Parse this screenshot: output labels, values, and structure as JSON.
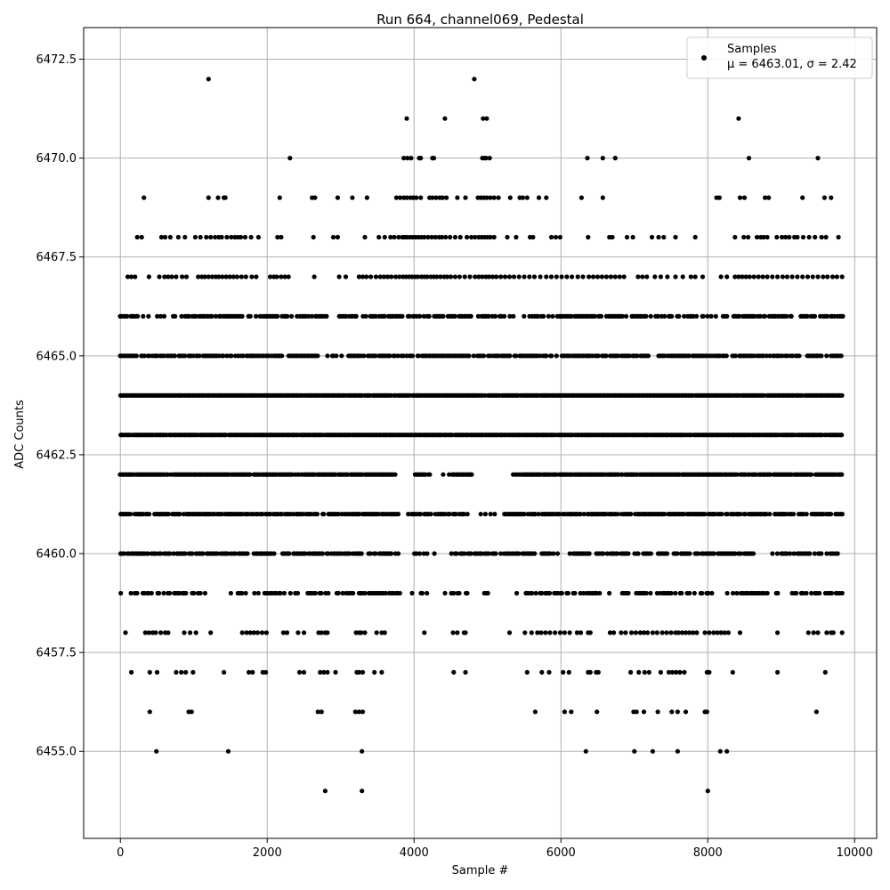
{
  "chart_data": {
    "type": "scatter",
    "title": "Run 664, channel069, Pedestal",
    "xlabel": "Sample #",
    "ylabel": "ADC Counts",
    "xlim": [
      -500,
      10300
    ],
    "ylim": [
      6452.8,
      6473.3
    ],
    "xticks": [
      0,
      2000,
      4000,
      6000,
      8000,
      10000
    ],
    "xtick_labels": [
      "0",
      "2000",
      "4000",
      "6000",
      "8000",
      "10000"
    ],
    "yticks": [
      6455.0,
      6457.5,
      6460.0,
      6462.5,
      6465.0,
      6467.5,
      6470.0,
      6472.5
    ],
    "ytick_labels": [
      "6455.0",
      "6457.5",
      "6460.0",
      "6462.5",
      "6465.0",
      "6467.5",
      "6470.0",
      "6472.5"
    ],
    "grid": true,
    "legend_position": "top-right",
    "marker_color": "#000000",
    "series": [
      {
        "name": "Samples",
        "legend_line2": "μ = 6463.01, σ = 2.42",
        "levels": [
          {
            "y": 6472,
            "x": [
              1200,
              4820
            ]
          },
          {
            "y": 6471,
            "x": [
              3900,
              4420,
              4940,
              4990,
              8420
            ]
          },
          {
            "y": 6470,
            "x": [
              2310,
              3860,
              3910,
              3960,
              4070,
              4090,
              4250,
              4270,
              4930,
              4960,
              4980,
              5030,
              6360,
              6570,
              6740,
              8560,
              9500
            ]
          },
          {
            "y": 6469,
            "x": [
              320,
              1200,
              1330,
              1410,
              1430,
              2170,
              2610,
              2650,
              2960,
              3160,
              3360,
              3760,
              3810,
              3860,
              3900,
              3950,
              3990,
              4030,
              4090,
              4210,
              4250,
              4300,
              4350,
              4390,
              4440,
              4590,
              4700,
              4870,
              4910,
              4950,
              4990,
              5040,
              5090,
              5150,
              5310,
              5440,
              5480,
              5540,
              5700,
              5800,
              6280,
              6570,
              8120,
              8160,
              8440,
              8500,
              8780,
              8830,
              9290,
              9590,
              9680
            ]
          },
          {
            "y": 6468,
            "x": [
              230,
              290,
              560,
              610,
              680,
              790,
              880,
              1020,
              1090,
              1170,
              1230,
              1290,
              1340,
              1380,
              1450,
              1510,
              1560,
              1600,
              1640,
              1700,
              1780,
              1880,
              2140,
              2190,
              2630,
              2900,
              2960,
              3330,
              3520,
              3600,
              3680,
              3730,
              3790,
              3840,
              3870,
              3900,
              3940,
              3980,
              4020,
              4060,
              4100,
              4140,
              4190,
              4240,
              4290,
              4340,
              4380,
              4430,
              4490,
              4560,
              4630,
              4720,
              4780,
              4830,
              4880,
              4920,
              4960,
              5000,
              5040,
              5090,
              5270,
              5390,
              5580,
              5620,
              5870,
              5930,
              5990,
              6370,
              6660,
              6700,
              6900,
              6980,
              7240,
              7330,
              7400,
              7560,
              7830,
              8370,
              8490,
              8550,
              8670,
              8720,
              8760,
              8810,
              8940,
              9010,
              9060,
              9110,
              9180,
              9220,
              9300,
              9380,
              9460,
              9550,
              9610,
              9780
            ]
          },
          {
            "y": 6467,
            "x": [
              100,
              150,
              200,
              390,
              530,
              600,
              650,
              700,
              760,
              840,
              900,
              1060,
              1110,
              1150,
              1200,
              1250,
              1300,
              1340,
              1390,
              1440,
              1490,
              1540,
              1590,
              1650,
              1710,
              1790,
              1850,
              2040,
              2090,
              2130,
              2190,
              2240,
              2290,
              2640,
              2980,
              3070,
              3250,
              3300,
              3350,
              3410,
              3480,
              3540,
              3590,
              3640,
              3690,
              3750,
              3800,
              3850,
              3890,
              3930,
              3970,
              4010,
              4050,
              4100,
              4140,
              4180,
              4230,
              4270,
              4310,
              4360,
              4410,
              4450,
              4500,
              4560,
              4620,
              4690,
              4760,
              4830,
              4880,
              4930,
              4980,
              5020,
              5070,
              5120,
              5180,
              5240,
              5300,
              5360,
              5430,
              5500,
              5570,
              5640,
              5720,
              5800,
              5870,
              5940,
              6010,
              6080,
              6150,
              6230,
              6300,
              6380,
              6440,
              6500,
              6560,
              6620,
              6680,
              6740,
              6800,
              6860,
              7050,
              7110,
              7170,
              7280,
              7360,
              7450,
              7560,
              7660,
              7770,
              7830,
              7930,
              8180,
              8260,
              8370,
              8420,
              8470,
              8520,
              8570,
              8630,
              8690,
              8750,
              8810,
              8880,
              8950,
              9020,
              9080,
              9150,
              9220,
              9290,
              9360,
              9430,
              9500,
              9570,
              9630,
              9700,
              9760,
              9830
            ]
          }
        ],
        "dense_levels": [
          {
            "y": 6466,
            "spacing": 24,
            "x_min": 0,
            "x_max": 9840,
            "seed": 11,
            "fill": 0.72,
            "gaps": [
              [
                260,
                380
              ],
              [
                750,
                820
              ],
              [
                1680,
                1830
              ],
              [
                2820,
                2960
              ],
              [
                3200,
                3270
              ],
              [
                4800,
                4860
              ],
              [
                5370,
                5470
              ],
              [
                7850,
                7950
              ],
              [
                8100,
                8180
              ]
            ]
          },
          {
            "y": 6465,
            "spacing": 22,
            "x_min": 0,
            "x_max": 9840,
            "seed": 23,
            "fill": 0.8,
            "gaps": [
              [
                2700,
                2940
              ],
              [
                7200,
                7290
              ],
              [
                8820,
                8900
              ],
              [
                9250,
                9330
              ]
            ]
          },
          {
            "y": 6464,
            "spacing": 18,
            "x_min": 0,
            "x_max": 9840,
            "seed": 37,
            "fill": 0.96,
            "gaps": []
          },
          {
            "y": 6463,
            "spacing": 18,
            "x_min": 0,
            "x_max": 9840,
            "seed": 41,
            "fill": 0.97,
            "gaps": []
          },
          {
            "y": 6462,
            "spacing": 18,
            "x_min": 0,
            "x_max": 9840,
            "seed": 53,
            "fill": 0.9,
            "gaps": [
              [
                3720,
                3980
              ],
              [
                4220,
                4520
              ],
              [
                4800,
                5330
              ],
              [
                5400,
                5480
              ]
            ]
          },
          {
            "y": 6461,
            "spacing": 22,
            "x_min": 0,
            "x_max": 9840,
            "seed": 61,
            "fill": 0.82,
            "gaps": [
              [
                3790,
                3900
              ],
              [
                4700,
                5000
              ],
              [
                5050,
                5200
              ]
            ]
          },
          {
            "y": 6460,
            "spacing": 24,
            "x_min": 0,
            "x_max": 9840,
            "seed": 71,
            "fill": 0.75,
            "gaps": [
              [
                3750,
                4000
              ],
              [
                4180,
                4500
              ],
              [
                4750,
                4820
              ],
              [
                6040,
                6150
              ],
              [
                7450,
                7520
              ],
              [
                8600,
                8940
              ]
            ]
          },
          {
            "y": 6459,
            "spacing": 28,
            "x_min": 0,
            "x_max": 9840,
            "seed": 83,
            "fill": 0.62,
            "gaps": [
              [
                1150,
                1480
              ],
              [
                3830,
                4100
              ],
              [
                4200,
                4480
              ],
              [
                4750,
                4920
              ],
              [
                5050,
                5500
              ],
              [
                6550,
                6650
              ],
              [
                9000,
                9120
              ]
            ]
          }
        ],
        "sparse_levels": [
          {
            "y": 6458,
            "x": [
              70,
              340,
              390,
              440,
              480,
              550,
              610,
              650,
              870,
              950,
              1030,
              1230,
              1660,
              1720,
              1770,
              1820,
              1870,
              1930,
              1990,
              2220,
              2270,
              2420,
              2500,
              2700,
              2740,
              2790,
              2820,
              3210,
              3250,
              3280,
              3330,
              3490,
              3560,
              3600,
              4140,
              4530,
              4590,
              4680,
              4700,
              5300,
              5510,
              5600,
              5680,
              5730,
              5790,
              5850,
              5920,
              5990,
              6050,
              6120,
              6220,
              6270,
              6370,
              6400,
              6670,
              6720,
              6820,
              6880,
              6960,
              7020,
              7080,
              7130,
              7180,
              7250,
              7310,
              7380,
              7440,
              7500,
              7560,
              7600,
              7650,
              7700,
              7750,
              7800,
              7850,
              7960,
              8020,
              8080,
              8130,
              8180,
              8230,
              8280,
              8440,
              8950,
              9370,
              9440,
              9500,
              9620,
              9680,
              9710,
              9830
            ]
          },
          {
            "y": 6457,
            "x": [
              150,
              400,
              500,
              760,
              830,
              890,
              990,
              1410,
              1750,
              1800,
              1940,
              1980,
              2440,
              2500,
              2720,
              2770,
              2820,
              2930,
              3220,
              3250,
              3300,
              3460,
              3560,
              4540,
              4700,
              5540,
              5740,
              5840,
              6030,
              6110,
              6370,
              6400,
              6480,
              6510,
              6950,
              7060,
              7140,
              7200,
              7360,
              7470,
              7520,
              7570,
              7620,
              7680,
              7990,
              8020,
              8340,
              8950,
              9600
            ]
          },
          {
            "y": 6456,
            "x": [
              400,
              930,
              970,
              2690,
              2740,
              3200,
              3250,
              3300,
              5650,
              6050,
              6140,
              6490,
              6990,
              7030,
              7130,
              7320,
              7510,
              7590,
              7700,
              7960,
              7990,
              9480
            ]
          },
          {
            "y": 6455,
            "x": [
              490,
              1470,
              3290,
              6340,
              7000,
              7250,
              7590,
              8170,
              8260
            ]
          },
          {
            "y": 6454,
            "x": [
              2790,
              3290,
              8000
            ]
          }
        ]
      }
    ]
  }
}
